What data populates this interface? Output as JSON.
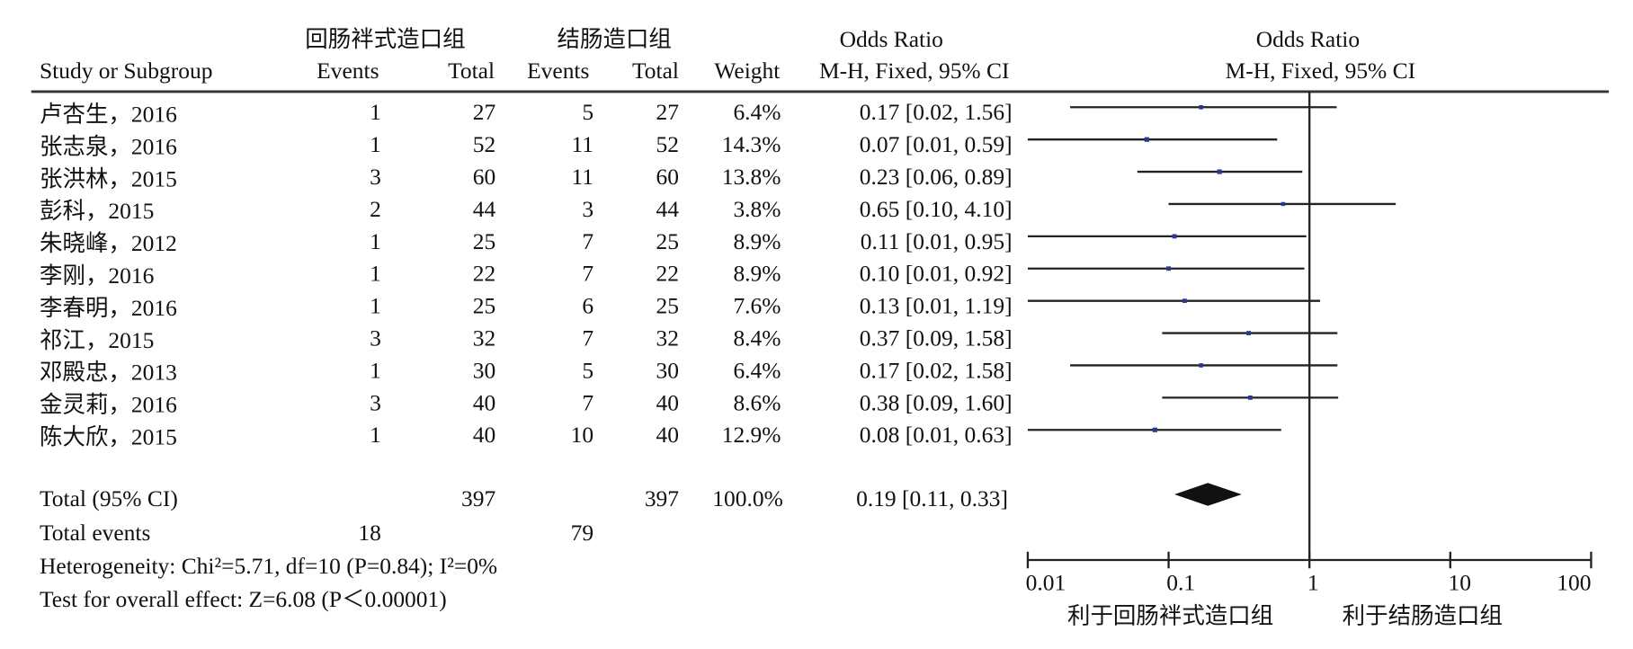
{
  "chart_data": {
    "type": "forest",
    "group_labels": [
      "回肠袢式造口组",
      "结肠造口组"
    ],
    "headers": {
      "study": "Study or Subgroup",
      "events1": "Events",
      "total1": "Total",
      "events2": "Events",
      "total2": "Total",
      "weight": "Weight",
      "or_title": "Odds Ratio",
      "or_method": "M-H, Fixed, 95% CI",
      "plot_title": "Odds Ratio",
      "plot_method": "M-H, Fixed, 95% CI"
    },
    "studies": [
      "卢杏生，2016",
      "张志泉，2016",
      "张洪林，2015",
      "彭科，2015",
      "朱晓峰，2012",
      "李刚，2016",
      "李春明，2016",
      "祁江，2015",
      "邓殿忠，2013",
      "金灵莉，2016",
      "陈大欣，2015"
    ],
    "events1": [
      1,
      1,
      3,
      2,
      1,
      1,
      1,
      3,
      1,
      3,
      1
    ],
    "total1": [
      27,
      52,
      60,
      44,
      25,
      22,
      25,
      32,
      30,
      40,
      40
    ],
    "events2": [
      5,
      11,
      11,
      3,
      7,
      7,
      6,
      7,
      5,
      7,
      10
    ],
    "total2": [
      27,
      52,
      60,
      44,
      25,
      22,
      25,
      32,
      30,
      40,
      40
    ],
    "weights": [
      6.4,
      14.3,
      13.8,
      3.8,
      8.9,
      8.9,
      7.6,
      8.4,
      6.4,
      8.6,
      12.9
    ],
    "weight_labels": [
      "6.4%",
      "14.3%",
      "13.8%",
      "3.8%",
      "8.9%",
      "8.9%",
      "7.6%",
      "8.4%",
      "6.4%",
      "8.6%",
      "12.9%"
    ],
    "or": [
      0.17,
      0.07,
      0.23,
      0.65,
      0.11,
      0.1,
      0.13,
      0.37,
      0.17,
      0.38,
      0.08
    ],
    "ci_low": [
      0.02,
      0.01,
      0.06,
      0.1,
      0.01,
      0.01,
      0.01,
      0.09,
      0.02,
      0.09,
      0.01
    ],
    "ci_high": [
      1.56,
      0.59,
      0.89,
      4.1,
      0.95,
      0.92,
      1.19,
      1.58,
      1.58,
      1.6,
      0.63
    ],
    "ci_labels": [
      "0.17 [0.02, 1.56]",
      "0.07 [0.01, 0.59]",
      "0.23 [0.06, 0.89]",
      "0.65 [0.10, 4.10]",
      "0.11 [0.01, 0.95]",
      "0.10 [0.01, 0.92]",
      "0.13 [0.01, 1.19]",
      "0.37 [0.09, 1.58]",
      "0.17 [0.02, 1.58]",
      "0.38 [0.09, 1.60]",
      "0.08 [0.01, 0.63]"
    ],
    "total": {
      "label": "Total (95% CI)",
      "total1": 397,
      "total2": 397,
      "weight": 100.0,
      "weight_label": "100.0%",
      "or": 0.19,
      "ci_low": 0.11,
      "ci_high": 0.33,
      "ci_label": "0.19 [0.11, 0.33]"
    },
    "total_events": {
      "label": "Total events",
      "events1": 18,
      "events2": 79
    },
    "heterogeneity": "Heterogeneity: Chi²=5.71, df=10 (P=0.84); I²=0%",
    "overall_effect": "Test for overall effect: Z=6.08 (P＜0.00001)",
    "log_scale": true,
    "xlim": [
      0.01,
      100
    ],
    "xticks": [
      0.01,
      0.1,
      1,
      10,
      100
    ],
    "x_labels": [
      "利于回肠袢式造口组",
      "利于结肠造口组"
    ],
    "color": "#2b3a8c"
  }
}
